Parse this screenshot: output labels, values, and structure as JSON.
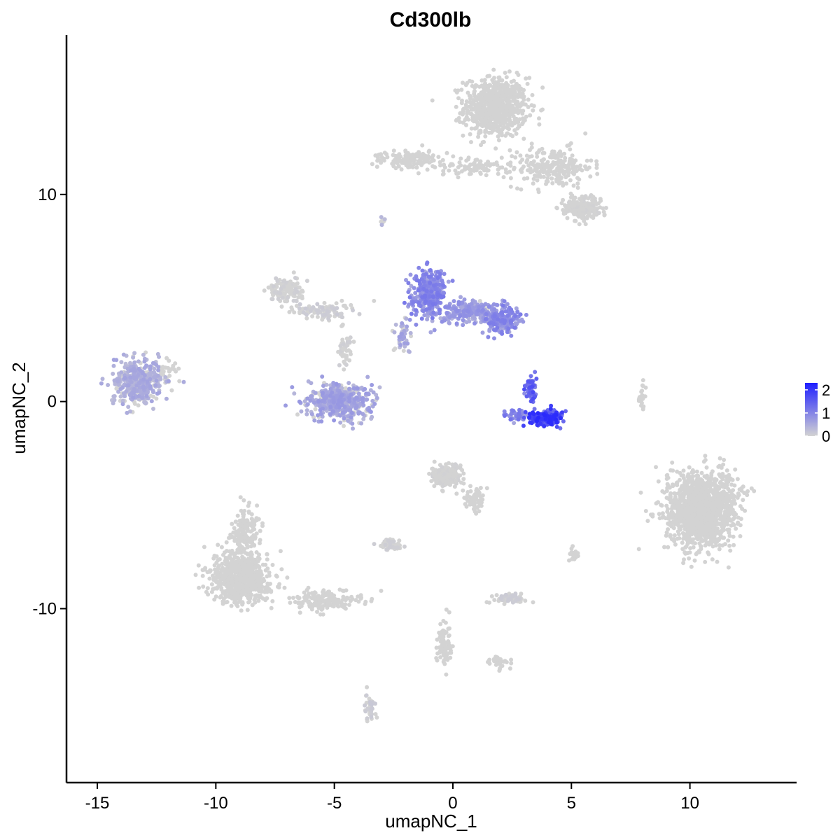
{
  "chart_data": {
    "type": "scatter",
    "title": "Cd300lb",
    "xlabel": "umapNC_1",
    "ylabel": "umapNC_2",
    "xlim": [
      -16.3,
      14.5
    ],
    "ylim": [
      -18.4,
      17.7
    ],
    "xticks": [
      -15,
      -10,
      -5,
      0,
      5,
      10
    ],
    "yticks": [
      -10,
      0,
      10
    ],
    "grid": false,
    "color_scale": {
      "low": "#d3d3d3",
      "high": "#1f1fff",
      "min": 0,
      "max": 2.3,
      "ticks": [
        0,
        1,
        2
      ],
      "legend_placement": "right"
    },
    "clusters": [
      {
        "cx": 1.8,
        "cy": 14.2,
        "sx": 1.1,
        "sy": 1.2,
        "n": 700,
        "expr": 0.0
      },
      {
        "cx": 4.2,
        "cy": 11.3,
        "sx": 1.4,
        "sy": 0.8,
        "n": 220,
        "expr": 0.0
      },
      {
        "cx": 5.5,
        "cy": 9.4,
        "sx": 0.7,
        "sy": 0.5,
        "n": 200,
        "expr": 0.02
      },
      {
        "cx": -1.8,
        "cy": 11.7,
        "sx": 1.0,
        "sy": 0.35,
        "n": 140,
        "expr": 0.0
      },
      {
        "cx": 0.9,
        "cy": 11.3,
        "sx": 1.4,
        "sy": 0.4,
        "n": 90,
        "expr": 0.0
      },
      {
        "cx": -13.3,
        "cy": 1.0,
        "sx": 0.85,
        "sy": 0.85,
        "n": 420,
        "expr": 0.45
      },
      {
        "cx": -7.0,
        "cy": 5.4,
        "sx": 0.6,
        "sy": 0.5,
        "n": 130,
        "expr": 0.05
      },
      {
        "cx": -5.5,
        "cy": 4.4,
        "sx": 1.0,
        "sy": 0.35,
        "n": 110,
        "expr": 0.08
      },
      {
        "cx": -4.6,
        "cy": 2.6,
        "sx": 0.25,
        "sy": 0.9,
        "n": 50,
        "expr": 0.05
      },
      {
        "cx": -4.8,
        "cy": 0.0,
        "sx": 1.1,
        "sy": 0.7,
        "n": 480,
        "expr": 0.55
      },
      {
        "cx": -1.0,
        "cy": 5.2,
        "sx": 0.55,
        "sy": 0.9,
        "n": 320,
        "expr": 0.85
      },
      {
        "cx": 0.7,
        "cy": 4.3,
        "sx": 1.0,
        "sy": 0.45,
        "n": 220,
        "expr": 0.65
      },
      {
        "cx": 2.1,
        "cy": 4.0,
        "sx": 0.6,
        "sy": 0.55,
        "n": 200,
        "expr": 0.8
      },
      {
        "cx": -2.1,
        "cy": 3.2,
        "sx": 0.3,
        "sy": 0.7,
        "n": 40,
        "expr": 0.5
      },
      {
        "cx": 3.9,
        "cy": -0.8,
        "sx": 0.55,
        "sy": 0.3,
        "n": 230,
        "expr": 1.55
      },
      {
        "cx": 3.3,
        "cy": 0.6,
        "sx": 0.2,
        "sy": 0.5,
        "n": 60,
        "expr": 1.25
      },
      {
        "cx": 2.6,
        "cy": -0.7,
        "sx": 0.45,
        "sy": 0.2,
        "n": 40,
        "expr": 0.9
      },
      {
        "cx": 10.5,
        "cy": -5.2,
        "sx": 1.25,
        "sy": 1.45,
        "n": 1400,
        "expr": 0.0
      },
      {
        "cx": -9.0,
        "cy": -8.5,
        "sx": 1.0,
        "sy": 1.0,
        "n": 700,
        "expr": 0.0
      },
      {
        "cx": -8.7,
        "cy": -6.3,
        "sx": 0.5,
        "sy": 0.9,
        "n": 150,
        "expr": 0.0
      },
      {
        "cx": -5.3,
        "cy": -9.6,
        "sx": 1.2,
        "sy": 0.4,
        "n": 170,
        "expr": 0.0
      },
      {
        "cx": -0.2,
        "cy": -3.6,
        "sx": 0.5,
        "sy": 0.5,
        "n": 170,
        "expr": 0.03
      },
      {
        "cx": 0.9,
        "cy": -4.8,
        "sx": 0.35,
        "sy": 0.6,
        "n": 60,
        "expr": 0.0
      },
      {
        "cx": -2.6,
        "cy": -6.9,
        "sx": 0.4,
        "sy": 0.2,
        "n": 70,
        "expr": 0.06
      },
      {
        "cx": 2.4,
        "cy": -9.5,
        "sx": 0.5,
        "sy": 0.2,
        "n": 80,
        "expr": 0.08
      },
      {
        "cx": -0.4,
        "cy": -11.7,
        "sx": 0.3,
        "sy": 0.9,
        "n": 80,
        "expr": 0.0
      },
      {
        "cx": 2.0,
        "cy": -12.6,
        "sx": 0.4,
        "sy": 0.25,
        "n": 30,
        "expr": 0.0
      },
      {
        "cx": -3.5,
        "cy": -14.7,
        "sx": 0.2,
        "sy": 0.5,
        "n": 45,
        "expr": 0.1
      },
      {
        "cx": 8.0,
        "cy": 0.3,
        "sx": 0.15,
        "sy": 0.45,
        "n": 25,
        "expr": 0.0
      },
      {
        "cx": 5.1,
        "cy": -7.3,
        "sx": 0.15,
        "sy": 0.3,
        "n": 20,
        "expr": 0.0
      },
      {
        "cx": -3.0,
        "cy": 8.7,
        "sx": 0.12,
        "sy": 0.12,
        "n": 8,
        "expr": 0.3
      },
      {
        "cx": -12.0,
        "cy": 1.6,
        "sx": 0.3,
        "sy": 0.6,
        "n": 25,
        "expr": 0.0
      }
    ]
  }
}
